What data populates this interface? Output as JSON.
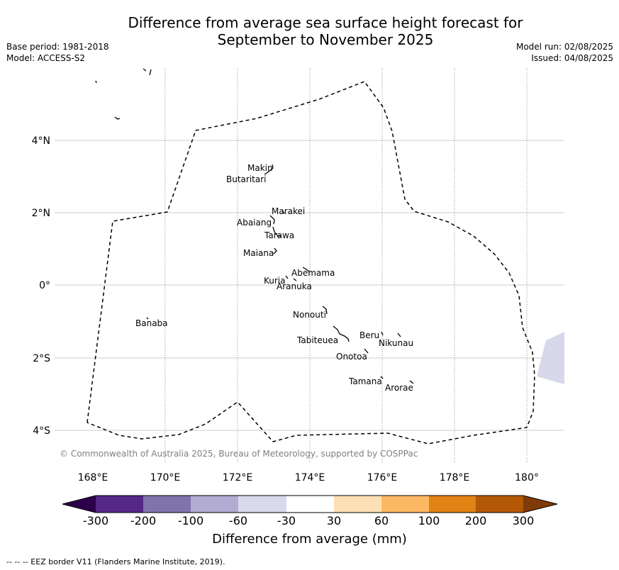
{
  "title_line1": "Difference from average sea surface height forecast for",
  "title_line2": "September to November 2025",
  "meta": {
    "base_period": "Base period: 1981-2018",
    "model": "Model: ACCESS-S2",
    "model_run": "Model run: 02/08/2025",
    "issued": "Issued: 04/08/2025"
  },
  "map": {
    "lon_ticks": [
      "168°E",
      "170°E",
      "172°E",
      "174°E",
      "176°E",
      "178°E",
      "180°"
    ],
    "lat_ticks": [
      "4°N",
      "2°N",
      "0°",
      "2°S",
      "4°S"
    ],
    "copyright": "© Commonwealth of Australia 2025, Bureau of Meteorology, supported by COSPPac",
    "places": [
      "Makin",
      "Butaritari",
      "Marakei",
      "Abaiang",
      "Tarawa",
      "Maiana",
      "Abemama",
      "Kuria",
      "Aranuka",
      "Nonouti",
      "Banaba",
      "Beru",
      "Nikunau",
      "Tabiteuea",
      "Onotoa",
      "Tamana",
      "Arorae"
    ],
    "anomaly_patch": {
      "category": "-60 to -30",
      "color": "#d8d8eb"
    }
  },
  "colorbar": {
    "title": "Difference from average (mm)",
    "labels": [
      "-300",
      "-200",
      "-100",
      "-60",
      "-30",
      "30",
      "60",
      "100",
      "200",
      "300"
    ],
    "colors": [
      "#2d004b",
      "#542788",
      "#8073ac",
      "#b2abd2",
      "#d8daeb",
      "#ffffff",
      "#fee0b6",
      "#fdb863",
      "#e08214",
      "#b35806",
      "#7f3b08"
    ]
  },
  "footer": "-- -- -- EEZ border V11 (Flanders Marine Institute, 2019)."
}
